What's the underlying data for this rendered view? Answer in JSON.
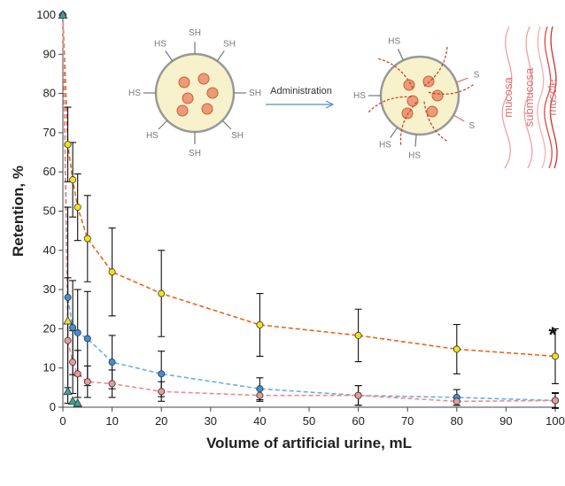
{
  "chart_data": {
    "type": "scatter",
    "x_label": "Volume of artificial urine, mL",
    "y_label": "Retention, %",
    "xlim": [
      0,
      100
    ],
    "xticks": [
      0,
      10,
      20,
      30,
      40,
      50,
      60,
      70,
      80,
      90,
      100
    ],
    "ylim": [
      0,
      100
    ],
    "yticks": [
      0,
      10,
      20,
      30,
      40,
      50,
      60,
      70,
      80,
      90,
      100
    ],
    "grid": false,
    "annotation": "*",
    "series": [
      {
        "color": "#f2e21b",
        "marker": "circle",
        "fit": "#e8641e",
        "x": [
          0,
          1,
          2,
          3,
          5,
          10,
          20,
          40,
          60,
          80,
          100
        ],
        "values": [
          100,
          67,
          58,
          51,
          43,
          34.5,
          29,
          21,
          18.3,
          14.8,
          13
        ],
        "errors": [
          0,
          9.5,
          9.5,
          8.5,
          11,
          11.2,
          11,
          8,
          6.7,
          6.3,
          7
        ]
      },
      {
        "color": "#3d8fd6",
        "marker": "circle",
        "fit": "#6aaee0",
        "x": [
          0,
          1,
          2,
          3,
          5,
          10,
          20,
          40,
          60,
          80,
          100
        ],
        "values": [
          100,
          28,
          20.3,
          19,
          17.5,
          11.5,
          8.5,
          4.7,
          3,
          2.5,
          1.7
        ],
        "errors": [
          0,
          23,
          12,
          11,
          12,
          6.8,
          5.8,
          2.8,
          2.5,
          2,
          1.8
        ]
      },
      {
        "color": "#e89a9a",
        "marker": "circle",
        "fit": "#f08a8a",
        "x": [
          0,
          1,
          2,
          3,
          5,
          10,
          20,
          40,
          60,
          80,
          100
        ],
        "values": [
          100,
          17,
          11.5,
          8.5,
          6.5,
          6,
          4,
          3,
          3,
          1.5,
          1.7
        ],
        "errors": [
          0,
          16,
          8,
          6,
          4,
          3.5,
          2.5,
          1.5,
          2.5,
          1,
          2
        ]
      },
      {
        "color": "#e8e03a",
        "marker": "triangle",
        "x": [
          0,
          1
        ],
        "values": [
          100,
          22
        ],
        "errors": [
          0,
          0
        ]
      },
      {
        "color": "#3aa39a",
        "marker": "triangle",
        "x": [
          0,
          1,
          2,
          3
        ],
        "values": [
          100,
          4,
          1.5,
          1
        ],
        "errors": [
          0,
          0,
          0,
          0
        ]
      }
    ],
    "inset": {
      "arrow_label": "Administration",
      "thiol": "SH",
      "thiol_rev": "HS",
      "bound": "S",
      "layers": [
        "mucosa",
        "submucosa",
        "muscle"
      ]
    }
  }
}
